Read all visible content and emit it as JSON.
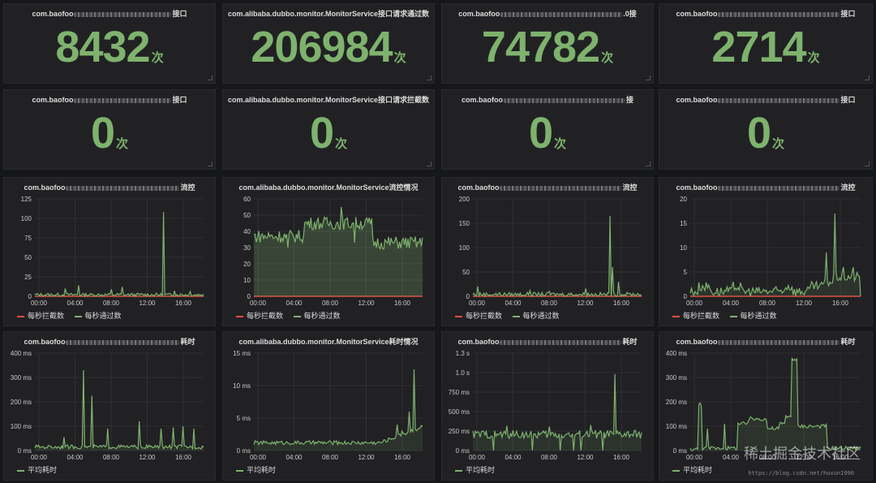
{
  "colors": {
    "pass": "#7eb26d",
    "block": "#e24d42",
    "text": "#d8d9da",
    "grid": "#303033"
  },
  "row1": [
    {
      "title_prefix": "com.baofoo",
      "title_suffix": "接口",
      "value": "8432",
      "unit": "次"
    },
    {
      "title_prefix": "com.alibaba.dubbo.monitor.MonitorService接口请求通过数",
      "title_suffix": "",
      "value": "206984",
      "unit": "次"
    },
    {
      "title_prefix": "com.baofoo",
      "title_suffix": ".0接",
      "value": "74782",
      "unit": "次"
    },
    {
      "title_prefix": "com.baofoo",
      "title_suffix": "接口",
      "value": "2714",
      "unit": "次"
    }
  ],
  "row2": [
    {
      "title_prefix": "com.baofoo",
      "title_suffix": "接口",
      "value": "0",
      "unit": "次"
    },
    {
      "title_prefix": "com.alibaba.dubbo.monitor.MonitorService接口请求拦截数",
      "title_suffix": "",
      "value": "0",
      "unit": "次"
    },
    {
      "title_prefix": "com.baofoo",
      "title_suffix": "接",
      "value": "0",
      "unit": "次"
    },
    {
      "title_prefix": "com.baofoo",
      "title_suffix": "接口",
      "value": "0",
      "unit": "次"
    }
  ],
  "row3_titles": [
    {
      "title_prefix": "com.baofoo",
      "title_suffix": "流控"
    },
    {
      "title_prefix": "com.alibaba.dubbo.monitor.MonitorService流控情况",
      "title_suffix": ""
    },
    {
      "title_prefix": "com.baofoo",
      "title_suffix": "流控"
    },
    {
      "title_prefix": "com.baofoo",
      "title_suffix": "流控"
    }
  ],
  "row4_titles": [
    {
      "title_prefix": "com.baofoo",
      "title_suffix": "耗时"
    },
    {
      "title_prefix": "com.alibaba.dubbo.monitor.MonitorService耗时情况",
      "title_suffix": ""
    },
    {
      "title_prefix": "com.baofoo",
      "title_suffix": "耗时"
    },
    {
      "title_prefix": "com.baofoo",
      "title_suffix": "耗时"
    }
  ],
  "legend": {
    "block": "每秒拦截数",
    "pass": "每秒通过数",
    "avg": "平均耗时"
  },
  "watermark": {
    "text": "稀土掘金技术社区",
    "url": "https://blog.csdn.net/huxun1990"
  },
  "chart_data": [
    {
      "type": "line",
      "id": "flow-1",
      "ylim": [
        0,
        125
      ],
      "yticks": [
        "0",
        "25",
        "50",
        "75",
        "100",
        "125"
      ],
      "xticks": [
        "00:00",
        "04:00",
        "08:00",
        "12:00",
        "16:00"
      ],
      "series": [
        {
          "name": "每秒拦截数",
          "baseline": 0
        },
        {
          "name": "每秒通过数",
          "base": 2,
          "noise": 2,
          "spikes": [
            [
              0.18,
              10
            ],
            [
              0.26,
              14
            ],
            [
              0.45,
              9
            ],
            [
              0.52,
              12
            ],
            [
              0.76,
              108
            ],
            [
              0.83,
              7
            ],
            [
              0.92,
              6
            ]
          ]
        }
      ]
    },
    {
      "type": "area",
      "id": "flow-2",
      "ylim": [
        0,
        60
      ],
      "yticks": [
        "0",
        "10",
        "20",
        "30",
        "40",
        "50",
        "60"
      ],
      "xticks": [
        "00:00",
        "04:00",
        "08:00",
        "12:00",
        "16:00"
      ],
      "series": [
        {
          "name": "每秒拦截数",
          "baseline": 0
        },
        {
          "name": "每秒通过数",
          "segments": [
            [
              0,
              0.3,
              37
            ],
            [
              0.3,
              0.7,
              45
            ],
            [
              0.7,
              1,
              33
            ]
          ],
          "noise": 4,
          "spikes": [
            [
              0.52,
              55
            ],
            [
              0.2,
              30
            ],
            [
              0.6,
              33
            ]
          ]
        }
      ]
    },
    {
      "type": "line",
      "id": "flow-3",
      "ylim": [
        0,
        200
      ],
      "yticks": [
        "0",
        "50",
        "100",
        "150",
        "200"
      ],
      "xticks": [
        "00:00",
        "04:00",
        "08:00",
        "12:00",
        "16:00"
      ],
      "series": [
        {
          "name": "每秒拦截数",
          "baseline": 0
        },
        {
          "name": "每秒通过数",
          "base": 4,
          "noise": 4,
          "spikes": [
            [
              0.03,
              20
            ],
            [
              0.34,
              12
            ],
            [
              0.45,
              10
            ],
            [
              0.67,
              16
            ],
            [
              0.81,
              165
            ],
            [
              0.83,
              60
            ],
            [
              0.86,
              30
            ]
          ]
        }
      ]
    },
    {
      "type": "line",
      "id": "flow-4",
      "ylim": [
        0,
        20
      ],
      "yticks": [
        "0",
        "5",
        "10",
        "15",
        "20"
      ],
      "xticks": [
        "00:00",
        "04:00",
        "08:00",
        "12:00",
        "16:00"
      ],
      "series": [
        {
          "name": "每秒拦截数",
          "baseline": 0
        },
        {
          "name": "每秒通过数",
          "steps": [
            [
              0,
              0.05,
              1
            ],
            [
              0.05,
              0.12,
              2
            ],
            [
              0.12,
              0.2,
              1
            ],
            [
              0.2,
              0.25,
              1
            ],
            [
              0.25,
              0.3,
              2
            ],
            [
              0.3,
              0.55,
              1
            ],
            [
              0.55,
              0.6,
              2
            ],
            [
              0.6,
              0.7,
              1
            ],
            [
              0.7,
              0.78,
              2
            ],
            [
              0.78,
              0.84,
              3
            ],
            [
              0.84,
              1,
              4
            ]
          ],
          "noise": 1,
          "spikes": [
            [
              0.85,
              17
            ],
            [
              0.8,
              9
            ],
            [
              0.9,
              6
            ],
            [
              0.96,
              6
            ]
          ]
        }
      ]
    },
    {
      "type": "line",
      "id": "lat-1",
      "ylim": [
        0,
        400
      ],
      "yticks": [
        "0 ms",
        "100 ms",
        "200 ms",
        "300 ms",
        "400 ms"
      ],
      "xticks": [
        "00:00",
        "04:00",
        "08:00",
        "12:00",
        "16:00"
      ],
      "series": [
        {
          "name": "平均耗时",
          "base": 15,
          "noise": 8,
          "spikes": [
            [
              0.17,
              55
            ],
            [
              0.29,
              330
            ],
            [
              0.34,
              225
            ],
            [
              0.43,
              90
            ],
            [
              0.62,
              120
            ],
            [
              0.75,
              90
            ],
            [
              0.82,
              95
            ],
            [
              0.88,
              100
            ],
            [
              0.94,
              90
            ]
          ]
        }
      ]
    },
    {
      "type": "line",
      "id": "lat-2",
      "ylim": [
        0,
        15
      ],
      "yticks": [
        "0 ms",
        "5 ms",
        "10 ms",
        "15 ms"
      ],
      "xticks": [
        "00:00",
        "04:00",
        "08:00",
        "12:00",
        "16:00"
      ],
      "series": [
        {
          "name": "平均耗时",
          "base": 1.2,
          "noise": 0.3,
          "rise": [
            0.75,
            2.5
          ],
          "spikes": [
            [
              0.85,
              4
            ],
            [
              0.88,
              3
            ],
            [
              0.92,
              6
            ],
            [
              0.95,
              12.5
            ]
          ]
        }
      ]
    },
    {
      "type": "line",
      "id": "lat-3",
      "ylim": [
        0,
        1300
      ],
      "yticks": [
        "0 ms",
        "250 ms",
        "500 ms",
        "750 ms",
        "1.0 s",
        "1.3 s"
      ],
      "xticks": [
        "00:00",
        "04:00",
        "08:00",
        "12:00",
        "16:00"
      ],
      "series": [
        {
          "name": "平均耗时",
          "base": 215,
          "noise": 55,
          "dips": [
            0.12,
            0.35,
            0.52,
            0.6,
            0.64,
            0.77
          ],
          "spikes": [
            [
              0.84,
              1020
            ],
            [
              0.2,
              330
            ],
            [
              0.45,
              320
            ],
            [
              0.7,
              340
            ]
          ]
        }
      ]
    },
    {
      "type": "line",
      "id": "lat-4",
      "ylim": [
        0,
        400
      ],
      "yticks": [
        "0 ms",
        "100 ms",
        "200 ms",
        "300 ms",
        "400 ms"
      ],
      "xticks": [
        "00:00",
        "04:00",
        "08:00",
        "12:00",
        "16:00"
      ],
      "series": [
        {
          "name": "平均耗时",
          "base": 10,
          "noise": 8,
          "steps": [
            [
              0,
              0.05,
              5
            ],
            [
              0.05,
              0.07,
              190
            ],
            [
              0.07,
              0.12,
              10
            ],
            [
              0.28,
              0.34,
              110
            ],
            [
              0.34,
              0.45,
              130
            ],
            [
              0.45,
              0.52,
              90
            ],
            [
              0.52,
              0.56,
              110
            ],
            [
              0.56,
              0.6,
              140
            ],
            [
              0.6,
              0.63,
              370
            ],
            [
              0.63,
              0.8,
              100
            ],
            [
              0.8,
              1,
              10
            ]
          ],
          "spikes": [
            [
              0.1,
              90
            ],
            [
              0.2,
              110
            ],
            [
              0.6,
              380
            ]
          ]
        }
      ]
    }
  ]
}
